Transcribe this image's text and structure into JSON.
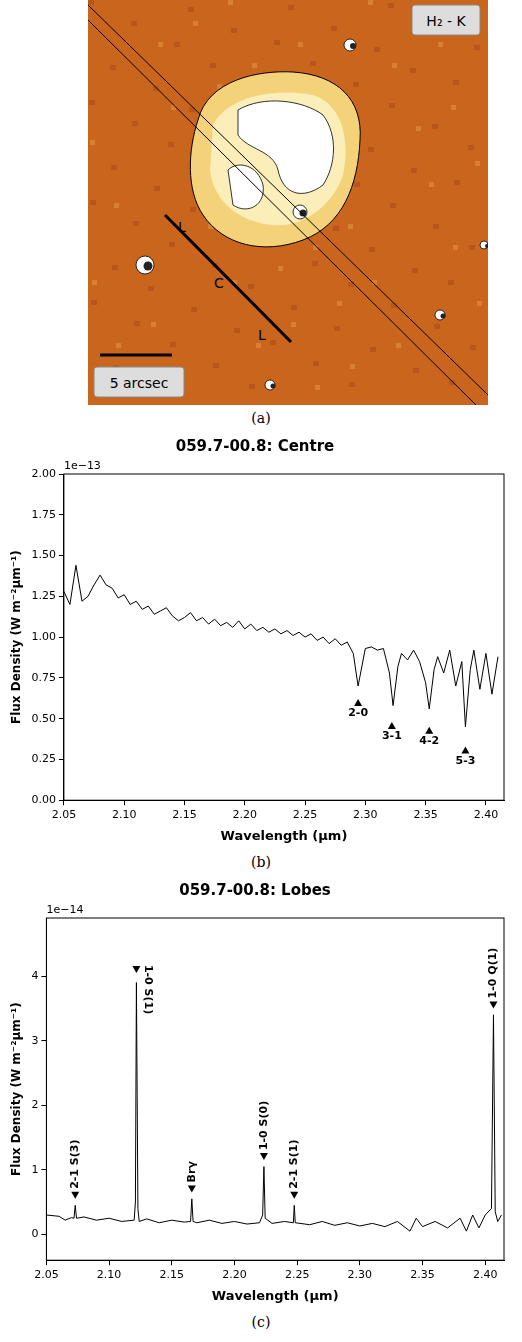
{
  "image_panel": {
    "panel_label": "(a)",
    "band_label": "H₂ - K",
    "scale_bar_label": "5 arcsec",
    "aperture_labels": [
      "L",
      "C",
      "L"
    ]
  },
  "chart_data": [
    {
      "type": "line",
      "panel_label": "(b)",
      "title": "059.7-00.8: Centre",
      "xlabel": "Wavelength (µm)",
      "ylabel": "Flux Density (W m⁻²µm⁻¹)",
      "y_offset_label": "1e−13",
      "xlim": [
        2.05,
        2.415
      ],
      "xticks": [
        2.05,
        {
          "value": 2.1,
          "label": "2.10"
        },
        2.15,
        {
          "value": 2.2,
          "label": "2.20"
        },
        2.25,
        {
          "value": 2.3,
          "label": "2.30"
        },
        2.35,
        {
          "value": 2.4,
          "label": "2.40"
        }
      ],
      "ylim": [
        0,
        2
      ],
      "yticks": [
        {
          "value": 0,
          "label": "0.00"
        },
        {
          "value": 0.25,
          "label": "0.25"
        },
        {
          "value": 0.5,
          "label": "0.50"
        },
        {
          "value": 0.75,
          "label": "0.75"
        },
        {
          "value": 1,
          "label": "1.00"
        },
        {
          "value": 1.25,
          "label": "1.25"
        },
        {
          "value": 1.5,
          "label": "1.50"
        },
        {
          "value": 1.75,
          "label": "1.75"
        },
        {
          "value": 2,
          "label": "2.00"
        }
      ],
      "grid": false,
      "series": [
        {
          "color": "#000000",
          "x": [
            2.05,
            2.055,
            2.06,
            2.065,
            2.07,
            2.075,
            2.08,
            2.085,
            2.09,
            2.095,
            2.1,
            2.105,
            2.11,
            2.115,
            2.12,
            2.125,
            2.13,
            2.135,
            2.14,
            2.145,
            2.15,
            2.155,
            2.16,
            2.165,
            2.17,
            2.175,
            2.18,
            2.185,
            2.19,
            2.195,
            2.2,
            2.205,
            2.21,
            2.215,
            2.22,
            2.225,
            2.23,
            2.235,
            2.24,
            2.245,
            2.25,
            2.255,
            2.26,
            2.265,
            2.27,
            2.275,
            2.28,
            2.285,
            2.29,
            2.294,
            2.3,
            2.305,
            2.31,
            2.315,
            2.32,
            2.323,
            2.327,
            2.33,
            2.335,
            2.34,
            2.345,
            2.35,
            2.353,
            2.357,
            2.36,
            2.365,
            2.37,
            2.375,
            2.38,
            2.383,
            2.387,
            2.39,
            2.395,
            2.4,
            2.405,
            2.41
          ],
          "values": [
            1.28,
            1.2,
            1.44,
            1.22,
            1.25,
            1.32,
            1.38,
            1.32,
            1.3,
            1.24,
            1.26,
            1.2,
            1.22,
            1.17,
            1.19,
            1.14,
            1.16,
            1.18,
            1.13,
            1.1,
            1.12,
            1.15,
            1.1,
            1.12,
            1.08,
            1.11,
            1.07,
            1.09,
            1.06,
            1.1,
            1.05,
            1.08,
            1.04,
            1.06,
            1.03,
            1.05,
            1.02,
            1.04,
            1.01,
            1.03,
            1.0,
            1.02,
            0.98,
            1.0,
            0.96,
            0.99,
            0.95,
            0.97,
            0.9,
            0.7,
            0.93,
            0.94,
            0.92,
            0.93,
            0.78,
            0.58,
            0.82,
            0.9,
            0.86,
            0.92,
            0.85,
            0.72,
            0.56,
            0.8,
            0.88,
            0.78,
            0.92,
            0.7,
            0.85,
            0.45,
            0.8,
            0.92,
            0.68,
            0.9,
            0.65,
            0.88
          ]
        }
      ],
      "annotations": [
        {
          "text": "2-0",
          "x": 2.294,
          "y": 0.62,
          "marker": "triangle-up"
        },
        {
          "text": "3-1",
          "x": 2.322,
          "y": 0.48,
          "marker": "triangle-up"
        },
        {
          "text": "4-2",
          "x": 2.353,
          "y": 0.45,
          "marker": "triangle-up"
        },
        {
          "text": "5-3",
          "x": 2.383,
          "y": 0.33,
          "marker": "triangle-up"
        }
      ]
    },
    {
      "type": "line",
      "panel_label": "(c)",
      "title": "059.7-00.8: Lobes",
      "xlabel": "Wavelength (µm)",
      "ylabel": "Flux Density (W m⁻²µm⁻¹)",
      "y_offset_label": "1e−14",
      "xlim": [
        2.05,
        2.415
      ],
      "xticks": [
        2.05,
        {
          "value": 2.1,
          "label": "2.10"
        },
        2.15,
        {
          "value": 2.2,
          "label": "2.20"
        },
        2.25,
        {
          "value": 2.3,
          "label": "2.30"
        },
        2.35,
        {
          "value": 2.4,
          "label": "2.40"
        }
      ],
      "ylim": [
        -0.4,
        4.9
      ],
      "yticks": [
        0,
        1,
        2,
        3,
        4
      ],
      "grid": false,
      "series": [
        {
          "color": "#000000",
          "x": [
            2.05,
            2.06,
            2.065,
            2.07,
            2.072,
            2.073,
            2.074,
            2.08,
            2.09,
            2.1,
            2.11,
            2.12,
            2.121,
            2.1218,
            2.123,
            2.124,
            2.13,
            2.14,
            2.15,
            2.16,
            2.165,
            2.166,
            2.167,
            2.17,
            2.18,
            2.19,
            2.2,
            2.21,
            2.22,
            2.2225,
            2.2235,
            2.2245,
            2.23,
            2.24,
            2.247,
            2.2477,
            2.2485,
            2.26,
            2.27,
            2.28,
            2.29,
            2.3,
            2.31,
            2.32,
            2.33,
            2.34,
            2.345,
            2.35,
            2.36,
            2.37,
            2.38,
            2.385,
            2.39,
            2.395,
            2.4,
            2.405,
            2.4066,
            2.408,
            2.41,
            2.413
          ],
          "values": [
            0.3,
            0.28,
            0.22,
            0.26,
            0.25,
            0.45,
            0.25,
            0.27,
            0.22,
            0.25,
            0.2,
            0.22,
            0.5,
            3.9,
            0.4,
            0.2,
            0.24,
            0.18,
            0.22,
            0.19,
            0.2,
            0.55,
            0.2,
            0.18,
            0.22,
            0.17,
            0.2,
            0.16,
            0.18,
            0.3,
            1.05,
            0.25,
            0.17,
            0.2,
            0.18,
            0.45,
            0.18,
            0.15,
            0.2,
            0.14,
            0.18,
            0.13,
            0.17,
            0.12,
            0.2,
            0.05,
            0.25,
            0.12,
            0.2,
            0.1,
            0.25,
            0.05,
            0.3,
            0.1,
            0.3,
            0.4,
            3.4,
            0.35,
            0.2,
            0.3
          ]
        }
      ],
      "annotations": [
        {
          "text": "2-1 S(3)",
          "x": 2.073,
          "y": 0.55,
          "marker": "triangle-down"
        },
        {
          "text": "1-0 S(1)",
          "x": 2.1218,
          "y": 4.05,
          "marker": "triangle-down"
        },
        {
          "text": "Brγ",
          "x": 2.166,
          "y": 0.65,
          "marker": "triangle-down"
        },
        {
          "text": "1-0 S(0)",
          "x": 2.2235,
          "y": 1.15,
          "marker": "triangle-down"
        },
        {
          "text": "2-1 S(1)",
          "x": 2.2477,
          "y": 0.55,
          "marker": "triangle-down"
        },
        {
          "text": "1-0 Q(1)",
          "x": 2.4066,
          "y": 3.5,
          "marker": "triangle-down"
        }
      ]
    }
  ]
}
